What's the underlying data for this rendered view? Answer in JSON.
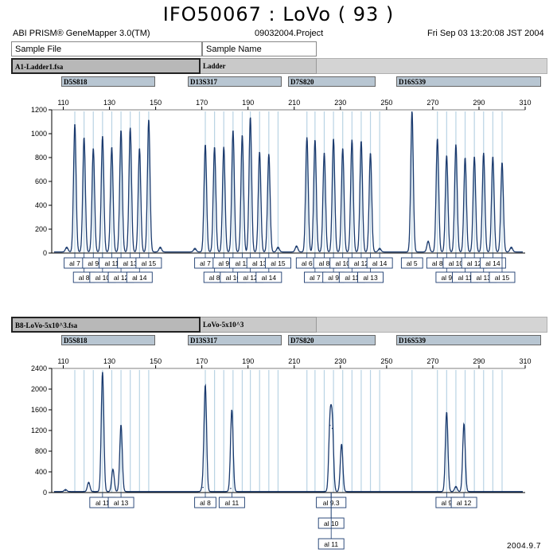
{
  "page": {
    "title": "IFO50067 : LoVo ( 93 )",
    "app_name": "ABI PRISM® GeneMapper 3.0(TM)",
    "project": "09032004.Project",
    "datetime": "Fri Sep 03 13:20:08 JST 2004",
    "footer_date": "2004.9.7"
  },
  "headers": {
    "sample_file": "Sample File",
    "sample_name": "Sample Name"
  },
  "colors": {
    "trace": "#1a3a6e",
    "bin_line": "#b9d3e4",
    "marker_bar": "#b8c6d2",
    "label_box": "#1a3a6e"
  },
  "panels": [
    {
      "file": "A1-Ladder1.fsa",
      "sample": "Ladder",
      "markers": [
        "D5S818",
        "D13S317",
        "D7S820",
        "D16S539"
      ]
    },
    {
      "file": "B8-LoVo-5x10^3.fsa",
      "sample": "LoVo-5x10^3",
      "markers": [
        "D5S818",
        "D13S317",
        "D7S820",
        "D16S539"
      ]
    }
  ],
  "chart_data": [
    {
      "type": "line",
      "title": "A1-Ladder1.fsa",
      "xlabel": "",
      "ylabel": "",
      "xlim": [
        105,
        310
      ],
      "ylim": [
        0,
        1200
      ],
      "x_ticks": [
        110,
        130,
        150,
        170,
        190,
        210,
        230,
        250,
        270,
        290,
        310
      ],
      "y_ticks": [
        0,
        200,
        400,
        600,
        800,
        1000,
        1200
      ],
      "grid": false,
      "peaks": [
        {
          "x": 111.5,
          "y": 40
        },
        {
          "x": 115,
          "y": 1070
        },
        {
          "x": 119,
          "y": 960
        },
        {
          "x": 123,
          "y": 870
        },
        {
          "x": 127,
          "y": 970
        },
        {
          "x": 131,
          "y": 880
        },
        {
          "x": 135,
          "y": 1020
        },
        {
          "x": 139,
          "y": 1040
        },
        {
          "x": 143,
          "y": 870
        },
        {
          "x": 147,
          "y": 1110
        },
        {
          "x": 152,
          "y": 40
        },
        {
          "x": 167,
          "y": 30
        },
        {
          "x": 171.5,
          "y": 900
        },
        {
          "x": 175.5,
          "y": 880
        },
        {
          "x": 179.5,
          "y": 880
        },
        {
          "x": 183.5,
          "y": 1020
        },
        {
          "x": 187.5,
          "y": 980
        },
        {
          "x": 191,
          "y": 1130
        },
        {
          "x": 195,
          "y": 840
        },
        {
          "x": 199,
          "y": 820
        },
        {
          "x": 203,
          "y": 40
        },
        {
          "x": 211,
          "y": 50
        },
        {
          "x": 215.5,
          "y": 960
        },
        {
          "x": 219,
          "y": 940
        },
        {
          "x": 223,
          "y": 830
        },
        {
          "x": 227,
          "y": 950
        },
        {
          "x": 231,
          "y": 870
        },
        {
          "x": 235,
          "y": 940
        },
        {
          "x": 239,
          "y": 930
        },
        {
          "x": 243,
          "y": 830
        },
        {
          "x": 247,
          "y": 30
        },
        {
          "x": 261,
          "y": 1180
        },
        {
          "x": 268,
          "y": 90
        },
        {
          "x": 272,
          "y": 950
        },
        {
          "x": 276,
          "y": 810
        },
        {
          "x": 280,
          "y": 900
        },
        {
          "x": 284,
          "y": 790
        },
        {
          "x": 288,
          "y": 800
        },
        {
          "x": 292,
          "y": 830
        },
        {
          "x": 296,
          "y": 800
        },
        {
          "x": 300,
          "y": 750
        },
        {
          "x": 304,
          "y": 40
        }
      ],
      "allele_labels": [
        {
          "label": "al 7",
          "x": 115,
          "row": 1
        },
        {
          "label": "al 8",
          "x": 119,
          "row": 2
        },
        {
          "label": "al 9",
          "x": 123,
          "row": 1
        },
        {
          "label": "al 10",
          "x": 127,
          "row": 2
        },
        {
          "label": "al 11",
          "x": 131,
          "row": 1
        },
        {
          "label": "al 12",
          "x": 135,
          "row": 2
        },
        {
          "label": "al 13",
          "x": 139,
          "row": 1
        },
        {
          "label": "al 14",
          "x": 143,
          "row": 2
        },
        {
          "label": "al 15",
          "x": 147,
          "row": 1
        },
        {
          "label": "al 7",
          "x": 171.5,
          "row": 1
        },
        {
          "label": "al 8",
          "x": 175.5,
          "row": 2
        },
        {
          "label": "al 9",
          "x": 179.5,
          "row": 1
        },
        {
          "label": "al 10",
          "x": 183.5,
          "row": 2
        },
        {
          "label": "al 11",
          "x": 187.5,
          "row": 1
        },
        {
          "label": "al 12",
          "x": 191,
          "row": 2
        },
        {
          "label": "al 13",
          "x": 195,
          "row": 1
        },
        {
          "label": "al 14",
          "x": 199,
          "row": 2
        },
        {
          "label": "al 15",
          "x": 203,
          "row": 1
        },
        {
          "label": "al 6",
          "x": 215.5,
          "row": 1
        },
        {
          "label": "al 7",
          "x": 219,
          "row": 2
        },
        {
          "label": "al 8",
          "x": 223,
          "row": 1
        },
        {
          "label": "al 9",
          "x": 227,
          "row": 2
        },
        {
          "label": "al 10",
          "x": 231,
          "row": 1
        },
        {
          "label": "al 11",
          "x": 235,
          "row": 2
        },
        {
          "label": "al 12",
          "x": 239,
          "row": 1
        },
        {
          "label": "al 13",
          "x": 243,
          "row": 2
        },
        {
          "label": "al 14",
          "x": 247,
          "row": 1
        },
        {
          "label": "al 5",
          "x": 261,
          "row": 1
        },
        {
          "label": "al 8",
          "x": 272,
          "row": 1
        },
        {
          "label": "al 9",
          "x": 276,
          "row": 2
        },
        {
          "label": "al 10",
          "x": 280,
          "row": 1
        },
        {
          "label": "al 11",
          "x": 284,
          "row": 2
        },
        {
          "label": "al 12",
          "x": 288,
          "row": 1
        },
        {
          "label": "al 13",
          "x": 292,
          "row": 2
        },
        {
          "label": "al 14",
          "x": 296,
          "row": 1
        },
        {
          "label": "al 15",
          "x": 300,
          "row": 2
        }
      ]
    },
    {
      "type": "line",
      "title": "B8-LoVo-5x10^3.fsa",
      "xlabel": "",
      "ylabel": "",
      "xlim": [
        105,
        310
      ],
      "ylim": [
        0,
        2400
      ],
      "x_ticks": [
        110,
        130,
        150,
        170,
        190,
        210,
        230,
        250,
        270,
        290,
        310
      ],
      "y_ticks": [
        0,
        400,
        800,
        1200,
        1600,
        2000,
        2400
      ],
      "grid": false,
      "bins": [
        115,
        119,
        123,
        127,
        131,
        135,
        139,
        143,
        147,
        171.5,
        175.5,
        179.5,
        183.5,
        187.5,
        191,
        195,
        199,
        203,
        215.5,
        219,
        223,
        227,
        231,
        235,
        239,
        243,
        247,
        261,
        272,
        276,
        280,
        284,
        288,
        292,
        296,
        300
      ],
      "peaks": [
        {
          "x": 111,
          "y": 40
        },
        {
          "x": 121,
          "y": 180
        },
        {
          "x": 127,
          "y": 2310
        },
        {
          "x": 131.5,
          "y": 430
        },
        {
          "x": 135,
          "y": 1290
        },
        {
          "x": 170.5,
          "y": 100
        },
        {
          "x": 171.5,
          "y": 2040
        },
        {
          "x": 182.5,
          "y": 80
        },
        {
          "x": 183,
          "y": 1530
        },
        {
          "x": 225.5,
          "y": 1300
        },
        {
          "x": 226.5,
          "y": 1240
        },
        {
          "x": 230.5,
          "y": 920
        },
        {
          "x": 276,
          "y": 1540
        },
        {
          "x": 280,
          "y": 100
        },
        {
          "x": 283.5,
          "y": 1310
        }
      ],
      "allele_labels": [
        {
          "label": "al 11",
          "x": 127,
          "row": 1
        },
        {
          "label": "al 13",
          "x": 135,
          "row": 1
        },
        {
          "label": "al 8",
          "x": 171.5,
          "row": 1
        },
        {
          "label": "al 11",
          "x": 183,
          "row": 1
        },
        {
          "label": "al 9.3",
          "x": 226,
          "row": 1
        },
        {
          "label": "al 10",
          "x": 226,
          "row": 2
        },
        {
          "label": "al 11",
          "x": 226,
          "row": 3
        },
        {
          "label": "al 9",
          "x": 276,
          "row": 1
        },
        {
          "label": "al 12",
          "x": 283.5,
          "row": 1
        }
      ]
    }
  ]
}
